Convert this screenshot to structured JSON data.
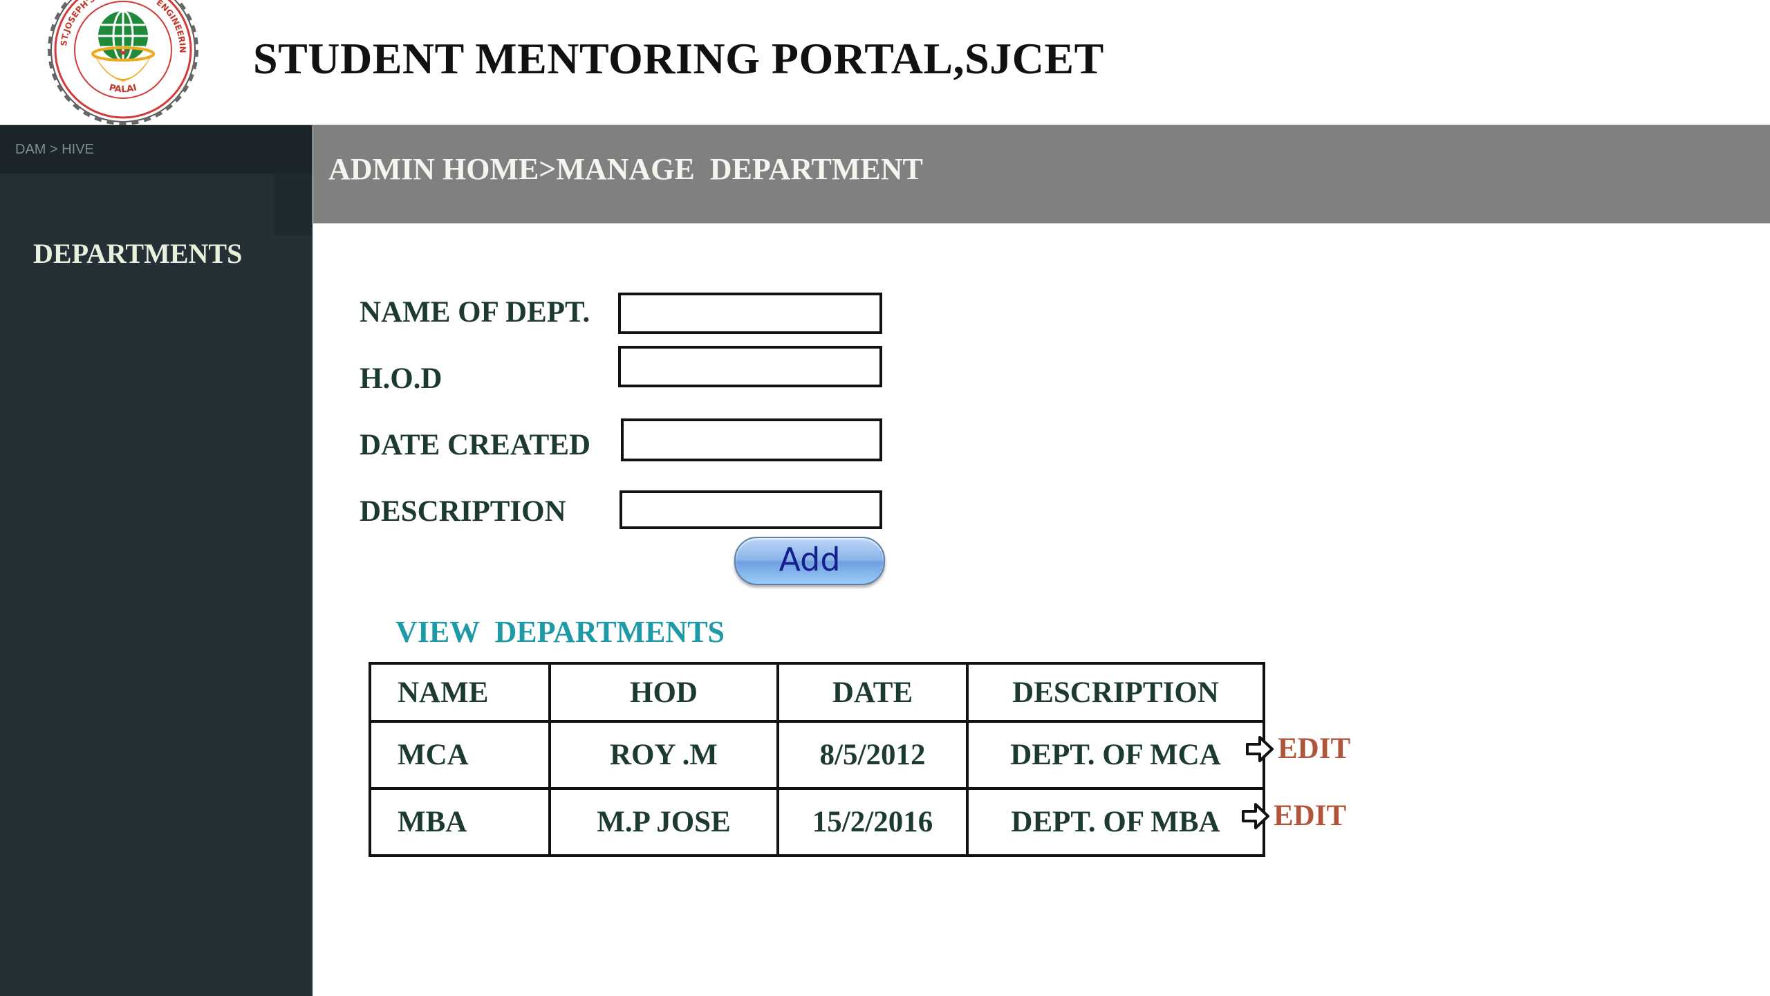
{
  "header": {
    "title": "STUDENT MENTORING PORTAL,SJCET",
    "logo": {
      "ring_text_top": "ST.JOSEPH'S COLLEGE OF ENGINEERING & TECHNOLOGY",
      "ring_text_bottom": "PALAI"
    }
  },
  "sidebar": {
    "crumb": "DAM > HIVE",
    "items": [
      {
        "label": "DEPARTMENTS"
      }
    ]
  },
  "breadcrumb": {
    "text": "ADMIN HOME>MANAGE  DEPARTMENT"
  },
  "form": {
    "fields": [
      {
        "label": "NAME OF DEPT.",
        "value": ""
      },
      {
        "label": "H.O.D",
        "value": ""
      },
      {
        "label": "DATE CREATED",
        "value": ""
      },
      {
        "label": "DESCRIPTION",
        "value": ""
      }
    ],
    "add_label": "Add"
  },
  "view": {
    "heading": "VIEW  DEPARTMENTS",
    "columns": [
      "NAME",
      "HOD",
      "DATE",
      "DESCRIPTION"
    ],
    "rows": [
      {
        "name": "MCA",
        "hod": "ROY .M",
        "date": "8/5/2012",
        "description": "DEPT. OF MCA",
        "action": "EDIT"
      },
      {
        "name": "MBA",
        "hod": "M.P JOSE",
        "date": "15/2/2016",
        "description": "DEPT. OF MBA",
        "action": "EDIT"
      }
    ]
  },
  "colors": {
    "sidebar_bg": "#243036",
    "breadcrumb_bg": "#808080",
    "label_text": "#1d3a2e",
    "view_heading": "#1e9aa6",
    "edit_link": "#b0553a",
    "add_button_text": "#15208c"
  },
  "icons": {
    "logo": "college-seal-logo",
    "edit_arrow": "right-arrow-outline-icon"
  }
}
